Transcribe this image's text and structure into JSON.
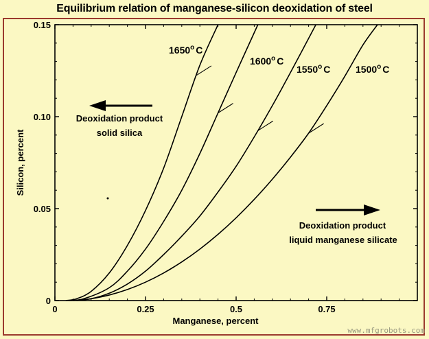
{
  "page": {
    "background": "#fbf8c3",
    "frame_color": "#9b3a2e",
    "watermark": "www.mfgrobots.com"
  },
  "chart_data": {
    "type": "line",
    "title": "Equilibrium relation of manganese-silicon deoxidation of steel",
    "xlabel": "Manganese, percent",
    "ylabel": "Silicon, percent",
    "xlim": [
      0,
      1.0
    ],
    "ylim": [
      0,
      0.15
    ],
    "xticks": [
      0,
      0.25,
      0.5,
      0.75
    ],
    "xtick_labels": [
      "0",
      "0.25",
      "0.5",
      "0.75"
    ],
    "yticks": [
      0,
      0.05,
      0.1,
      0.15
    ],
    "ytick_labels": [
      "0",
      "0.05",
      "0.10",
      "0.15"
    ],
    "grid": false,
    "series": [
      {
        "name": "1650°C",
        "label_text": "1650",
        "label_unit": "C",
        "x": [
          0.03,
          0.06,
          0.1,
          0.15,
          0.2,
          0.25,
          0.3,
          0.35,
          0.4,
          0.45
        ],
        "y": [
          0,
          0.001,
          0.005,
          0.015,
          0.03,
          0.049,
          0.072,
          0.1,
          0.128,
          0.15
        ]
      },
      {
        "name": "1600°C",
        "label_text": "1600",
        "label_unit": "C",
        "x": [
          0.04,
          0.08,
          0.15,
          0.2,
          0.25,
          0.3,
          0.35,
          0.4,
          0.45,
          0.5,
          0.56
        ],
        "y": [
          0,
          0.001,
          0.007,
          0.016,
          0.028,
          0.043,
          0.06,
          0.08,
          0.102,
          0.124,
          0.15
        ]
      },
      {
        "name": "1550°C",
        "label_text": "1550",
        "label_unit": "C",
        "x": [
          0.05,
          0.1,
          0.15,
          0.2,
          0.25,
          0.3,
          0.35,
          0.4,
          0.45,
          0.5,
          0.55,
          0.6,
          0.65,
          0.72
        ],
        "y": [
          0,
          0.001,
          0.004,
          0.009,
          0.016,
          0.025,
          0.035,
          0.046,
          0.059,
          0.073,
          0.089,
          0.106,
          0.124,
          0.15
        ]
      },
      {
        "name": "1500°C",
        "label_text": "1500",
        "label_unit": "C",
        "x": [
          0.06,
          0.1,
          0.15,
          0.2,
          0.25,
          0.3,
          0.35,
          0.4,
          0.45,
          0.5,
          0.55,
          0.6,
          0.65,
          0.7,
          0.75,
          0.8,
          0.85,
          0.89
        ],
        "y": [
          0,
          0.001,
          0.003,
          0.006,
          0.01,
          0.015,
          0.021,
          0.028,
          0.036,
          0.045,
          0.055,
          0.066,
          0.078,
          0.091,
          0.106,
          0.122,
          0.139,
          0.15
        ]
      }
    ],
    "annotations": [
      {
        "id": "left",
        "direction": "left",
        "lines": [
          "Deoxidation product",
          "solid silica"
        ]
      },
      {
        "id": "right",
        "direction": "right",
        "lines": [
          "Deoxidation product",
          "liquid manganese silicate"
        ]
      }
    ]
  }
}
